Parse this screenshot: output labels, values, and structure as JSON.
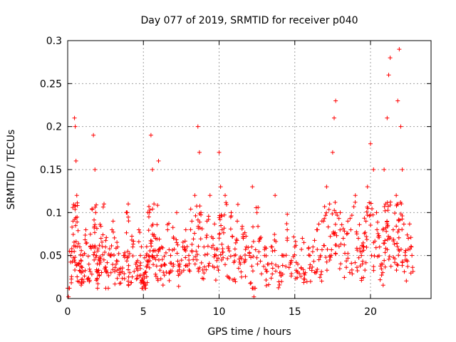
{
  "chart_data": {
    "type": "scatter",
    "title": "Day 077 of 2019, SRMTID for receiver p040",
    "xlabel": "GPS time / hours",
    "ylabel": "SRMTID / TECUs",
    "xlim": [
      0,
      24
    ],
    "ylim": [
      0,
      0.3
    ],
    "x_ticks": [
      0,
      5,
      10,
      15,
      20
    ],
    "x_tick_labels": [
      "0",
      "5",
      "10",
      "15",
      "20"
    ],
    "y_ticks": [
      0,
      0.05,
      0.1,
      0.15,
      0.2,
      0.25,
      0.3
    ],
    "y_tick_labels": [
      "0",
      "0.05",
      "0.1",
      "0.15",
      "0.2",
      "0.25",
      "0.3"
    ],
    "grid": true,
    "marker": "+",
    "marker_color": "#ff0000",
    "series": [
      {
        "name": "SRMTID",
        "x": [
          0.05,
          0.2,
          0.35,
          0.45,
          0.5,
          0.55,
          0.6,
          0.7,
          0.8,
          0.9,
          1.0,
          1.2,
          1.4,
          1.5,
          1.7,
          1.8,
          1.85,
          1.9,
          2.0,
          2.1,
          2.2,
          2.4,
          2.5,
          2.6,
          2.8,
          3.0,
          3.2,
          3.3,
          3.5,
          3.7,
          3.9,
          4.0,
          4.1,
          4.3,
          4.5,
          4.7,
          4.8,
          4.9,
          5.0,
          5.1,
          5.2,
          5.3,
          5.4,
          5.5,
          5.6,
          5.7,
          5.8,
          5.9,
          6.0,
          6.2,
          6.4,
          6.6,
          6.8,
          7.0,
          7.2,
          7.4,
          7.6,
          7.8,
          8.0,
          8.2,
          8.4,
          8.6,
          8.7,
          8.8,
          9.0,
          9.2,
          9.4,
          9.6,
          9.8,
          10.0,
          10.1,
          10.2,
          10.4,
          10.6,
          10.8,
          11.0,
          11.2,
          11.4,
          11.6,
          11.8,
          12.0,
          12.2,
          12.3,
          12.5,
          12.7,
          13.0,
          13.2,
          13.5,
          13.7,
          14.0,
          14.2,
          14.5,
          14.7,
          15.0,
          15.2,
          15.5,
          15.7,
          16.0,
          16.2,
          16.5,
          16.7,
          16.9,
          17.1,
          17.3,
          17.5,
          17.6,
          17.7,
          18.0,
          18.2,
          18.5,
          18.7,
          19.0,
          19.2,
          19.4,
          19.5,
          19.7,
          19.8,
          20.0,
          20.2,
          20.4,
          20.6,
          20.8,
          20.9,
          21.0,
          21.1,
          21.2,
          21.3,
          21.5,
          21.7,
          21.8,
          21.9,
          22.0,
          22.1,
          22.3,
          22.5,
          22.7
        ],
        "y": [
          0.002,
          0.05,
          0.09,
          0.21,
          0.2,
          0.16,
          0.12,
          0.04,
          0.06,
          0.03,
          0.05,
          0.08,
          0.04,
          0.06,
          0.19,
          0.15,
          0.1,
          0.05,
          0.03,
          0.04,
          0.07,
          0.11,
          0.06,
          0.03,
          0.05,
          0.09,
          0.04,
          0.06,
          0.03,
          0.05,
          0.1,
          0.11,
          0.03,
          0.06,
          0.04,
          0.08,
          0.05,
          0.02,
          0.02,
          0.03,
          0.05,
          0.04,
          0.1,
          0.19,
          0.15,
          0.11,
          0.07,
          0.05,
          0.16,
          0.06,
          0.04,
          0.08,
          0.05,
          0.07,
          0.1,
          0.04,
          0.06,
          0.08,
          0.05,
          0.09,
          0.12,
          0.2,
          0.17,
          0.1,
          0.06,
          0.09,
          0.12,
          0.07,
          0.05,
          0.17,
          0.13,
          0.08,
          0.12,
          0.06,
          0.1,
          0.05,
          0.09,
          0.04,
          0.07,
          0.06,
          0.05,
          0.13,
          0.002,
          0.1,
          0.07,
          0.05,
          0.04,
          0.06,
          0.12,
          0.03,
          0.05,
          0.08,
          0.04,
          0.06,
          0.04,
          0.07,
          0.03,
          0.05,
          0.06,
          0.08,
          0.05,
          0.09,
          0.13,
          0.11,
          0.17,
          0.21,
          0.23,
          0.1,
          0.07,
          0.09,
          0.08,
          0.12,
          0.07,
          0.05,
          0.06,
          0.09,
          0.13,
          0.18,
          0.15,
          0.1,
          0.06,
          0.04,
          0.15,
          0.11,
          0.21,
          0.26,
          0.28,
          0.08,
          0.12,
          0.23,
          0.29,
          0.2,
          0.15,
          0.05,
          0.07,
          0.06
        ],
        "jitter_points_per_sample": 6
      }
    ]
  }
}
